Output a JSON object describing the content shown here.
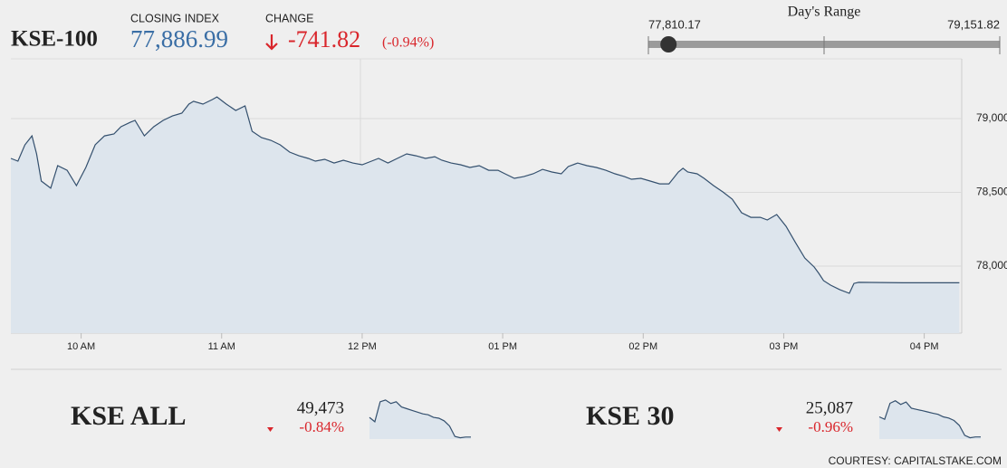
{
  "header": {
    "title": "KSE-100",
    "closing_label": "CLOSING INDEX",
    "closing_value": "77,886.99",
    "change_label": "CHANGE",
    "change_value": "-741.82",
    "change_percent": "(-0.94%)",
    "range_label": "Day's Range",
    "range_low": "77,810.17",
    "range_high": "79,151.82"
  },
  "chart_data": [
    {
      "type": "area",
      "color": "#34506e",
      "fill": "#dde5ed",
      "x": [
        570,
        573,
        576,
        579,
        581,
        583,
        587,
        590,
        594,
        598,
        602,
        606,
        610,
        614,
        617,
        621,
        623,
        627,
        631,
        635,
        639,
        643,
        646,
        648,
        652,
        656,
        658,
        662,
        666,
        670,
        673,
        677,
        681,
        685,
        689,
        693,
        697,
        700,
        704,
        708,
        712,
        716,
        720,
        724,
        727,
        731,
        735,
        739,
        743,
        747,
        751,
        754,
        758,
        762,
        766,
        770,
        774,
        778,
        781,
        785,
        789,
        793,
        797,
        801,
        805,
        808,
        812,
        816,
        820,
        824,
        828,
        832,
        835,
        839,
        843,
        847,
        851,
        855,
        857,
        859,
        863,
        866,
        870,
        874,
        878,
        882,
        886,
        890,
        893,
        897,
        901,
        905,
        909,
        913,
        915,
        917,
        920,
        924,
        928,
        930,
        932,
        951,
        975
      ],
      "values": [
        78730,
        78712,
        78822,
        78883,
        78761,
        78577,
        78528,
        78681,
        78650,
        78546,
        78669,
        78822,
        78883,
        78896,
        78945,
        78975,
        78988,
        78883,
        78945,
        78988,
        79018,
        79037,
        79098,
        79117,
        79098,
        79129,
        79147,
        79098,
        79055,
        79086,
        78914,
        78871,
        78853,
        78822,
        78773,
        78748,
        78730,
        78712,
        78724,
        78699,
        78718,
        78699,
        78687,
        78712,
        78730,
        78699,
        78730,
        78761,
        78748,
        78730,
        78742,
        78718,
        78699,
        78687,
        78669,
        78681,
        78650,
        78650,
        78626,
        78595,
        78607,
        78626,
        78656,
        78638,
        78626,
        78675,
        78699,
        78681,
        78669,
        78650,
        78626,
        78607,
        78589,
        78595,
        78577,
        78558,
        78558,
        78638,
        78663,
        78638,
        78626,
        78595,
        78546,
        78503,
        78454,
        78362,
        78331,
        78331,
        78313,
        78350,
        78270,
        78160,
        78055,
        77994,
        77951,
        77902,
        77871,
        77840,
        77816,
        77883,
        77890,
        77887,
        77887
      ],
      "xlim": [
        570,
        976
      ],
      "ylim": [
        77546,
        79405
      ],
      "xticks": [
        {
          "value": 600,
          "label": "10 AM"
        },
        {
          "value": 660,
          "label": "11 AM"
        },
        {
          "value": 720,
          "label": "12 PM"
        },
        {
          "value": 780,
          "label": "01 PM"
        },
        {
          "value": 840,
          "label": "02 PM"
        },
        {
          "value": 900,
          "label": "03 PM"
        },
        {
          "value": 960,
          "label": "04 PM"
        }
      ],
      "yticks": [
        {
          "value": 78000,
          "label": "78,000"
        },
        {
          "value": 78500,
          "label": "78,500"
        },
        {
          "value": 79000,
          "label": "79,000"
        }
      ],
      "grid": true
    },
    {
      "type": "area",
      "color": "#34506e",
      "fill": "#dde5ed",
      "values": [
        49700,
        49650,
        49880,
        49900,
        49860,
        49880,
        49820,
        49800,
        49780,
        49760,
        49740,
        49730,
        49700,
        49690,
        49660,
        49600,
        49480,
        49465,
        49473,
        49473
      ],
      "ylim": [
        49450,
        49920
      ]
    },
    {
      "type": "area",
      "color": "#34506e",
      "fill": "#dde5ed",
      "values": [
        25250,
        25230,
        25360,
        25380,
        25350,
        25370,
        25320,
        25310,
        25300,
        25290,
        25280,
        25270,
        25250,
        25240,
        25220,
        25180,
        25100,
        25080,
        25087,
        25087
      ],
      "ylim": [
        25070,
        25400
      ]
    }
  ],
  "indices": [
    {
      "name": "KSE ALL",
      "value": "49,473",
      "change": "-0.84%"
    },
    {
      "name": "KSE 30",
      "value": "25,087",
      "change": "-0.96%"
    }
  ],
  "footer": "COURTESY: CAPITALSTAKE.COM"
}
